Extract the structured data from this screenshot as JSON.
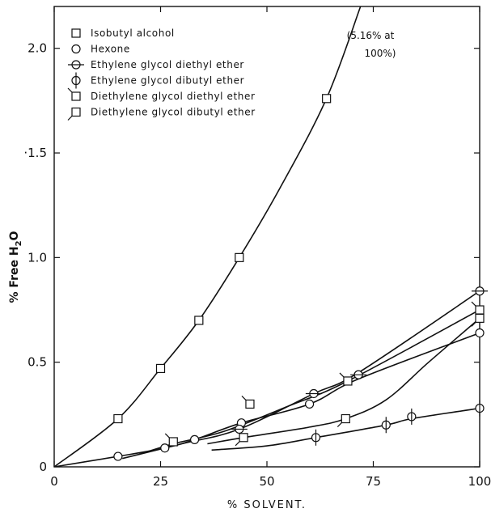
{
  "chart_data": {
    "type": "scatter",
    "xlabel": "% SOLVENT.",
    "ylabel_prefix": "% Free H",
    "ylabel_sub": "2",
    "ylabel_suffix": "O",
    "xlim": [
      0,
      100
    ],
    "ylim": [
      0,
      2.2
    ],
    "x_ticks": [
      0,
      25,
      50,
      75,
      100
    ],
    "x_tick_labels": [
      "0",
      "25",
      "50",
      "75",
      "100"
    ],
    "y_ticks": [
      0,
      0.5,
      1.0,
      1.5,
      2.0
    ],
    "y_tick_labels": [
      "0",
      "0.5",
      "1.0",
      "·1.5",
      "2.0"
    ],
    "grid": false,
    "legend_position": "top-left",
    "annotation": [
      "(5.16% at",
      "100%)"
    ],
    "series": [
      {
        "name": "Isobutyl alcohol",
        "marker": "square",
        "points": [
          [
            15,
            0.23
          ],
          [
            25,
            0.47
          ],
          [
            34,
            0.7
          ],
          [
            43.5,
            1.0
          ],
          [
            64,
            1.76
          ]
        ],
        "curve": [
          [
            0,
            0
          ],
          [
            15,
            0.23
          ],
          [
            25,
            0.47
          ],
          [
            34,
            0.7
          ],
          [
            43.5,
            1.0
          ],
          [
            53,
            1.33
          ],
          [
            64,
            1.76
          ],
          [
            72,
            2.2
          ]
        ]
      },
      {
        "name": "Hexone",
        "marker": "circle",
        "points": [
          [
            15,
            0.05
          ],
          [
            26,
            0.09
          ],
          [
            33,
            0.13
          ],
          [
            44,
            0.21
          ],
          [
            60,
            0.3
          ],
          [
            71.5,
            0.44
          ],
          [
            100,
            0.64
          ]
        ],
        "curve": [
          [
            0,
            0
          ],
          [
            15,
            0.05
          ],
          [
            26,
            0.09
          ],
          [
            33,
            0.13
          ],
          [
            44,
            0.21
          ],
          [
            60,
            0.3
          ],
          [
            71.5,
            0.42
          ],
          [
            100,
            0.64
          ]
        ]
      },
      {
        "name": "Ethylene glycol diethyl ether",
        "marker": "circle-hline",
        "points": [
          [
            43.5,
            0.18
          ],
          [
            61,
            0.35
          ],
          [
            71.5,
            0.44
          ],
          [
            100,
            0.84
          ]
        ],
        "curve": [
          [
            16,
            0.04
          ],
          [
            30,
            0.11
          ],
          [
            43.5,
            0.18
          ],
          [
            61,
            0.35
          ],
          [
            71.5,
            0.45
          ],
          [
            100,
            0.84
          ]
        ]
      },
      {
        "name": "Ethylene glycol dibutyl ether",
        "marker": "circle-vline",
        "points": [
          [
            61.5,
            0.14
          ],
          [
            78,
            0.2
          ],
          [
            84,
            0.24
          ],
          [
            100,
            0.28
          ]
        ],
        "curve": [
          [
            37,
            0.08
          ],
          [
            50,
            0.1
          ],
          [
            61.5,
            0.14
          ],
          [
            78,
            0.2
          ],
          [
            84,
            0.23
          ],
          [
            100,
            0.28
          ]
        ]
      },
      {
        "name": "Diethylene glycol diethyl ether",
        "marker": "square-tick",
        "points": [
          [
            28,
            0.12
          ],
          [
            46,
            0.3
          ],
          [
            69,
            0.41
          ],
          [
            100,
            0.75
          ]
        ],
        "curve": [
          [
            20,
            0.06
          ],
          [
            28,
            0.11
          ],
          [
            40,
            0.17
          ],
          [
            55,
            0.29
          ],
          [
            69,
            0.41
          ],
          [
            100,
            0.75
          ]
        ]
      },
      {
        "name": "Diethylene glycol dibutyl ether",
        "marker": "square-tick2",
        "points": [
          [
            44.5,
            0.14
          ],
          [
            68.5,
            0.23
          ],
          [
            100,
            0.71
          ]
        ],
        "curve": [
          [
            36,
            0.11
          ],
          [
            44.5,
            0.14
          ],
          [
            60,
            0.19
          ],
          [
            68.5,
            0.23
          ],
          [
            78,
            0.32
          ],
          [
            88,
            0.5
          ],
          [
            100,
            0.71
          ]
        ]
      }
    ]
  }
}
